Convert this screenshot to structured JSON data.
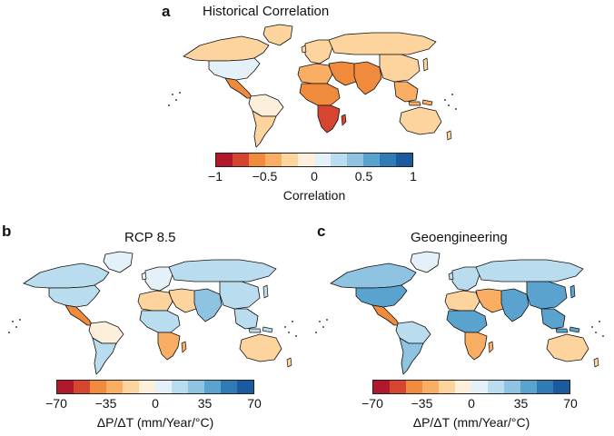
{
  "panels": {
    "a": {
      "letter": "a",
      "title": "Historical Correlation",
      "colorbar": {
        "colors": [
          "#b2182b",
          "#d6452f",
          "#f08a3c",
          "#f9ae63",
          "#fdd49e",
          "#fdf0da",
          "#e4f1f8",
          "#b9dcee",
          "#8ec3e1",
          "#5aa3cf",
          "#2f7bb6",
          "#1c5aa0"
        ],
        "ticks": [
          "−1",
          "−0.5",
          "0",
          "0.5",
          "1"
        ],
        "label": "Correlation"
      },
      "regions": {
        "north_america": "#fdd49e",
        "greenland": "#fdd49e",
        "usa": "#e4f1f8",
        "central_america": "#f08a3c",
        "south_america_north": "#fdf0da",
        "south_america_south": "#fdd49e",
        "europe": "#fdd49e",
        "russia": "#fdd49e",
        "middle_east": "#f08a3c",
        "north_africa": "#f9ae63",
        "sahel": "#f08a3c",
        "southern_africa": "#d6452f",
        "south_asia": "#f08a3c",
        "east_asia": "#fdd49e",
        "southeast_asia": "#f9ae63",
        "australia": "#fdd49e"
      }
    },
    "b": {
      "letter": "b",
      "title": "RCP 8.5",
      "colorbar": {
        "colors": [
          "#b2182b",
          "#d6452f",
          "#f08a3c",
          "#f9ae63",
          "#fdd49e",
          "#fdf0da",
          "#e4f1f8",
          "#b9dcee",
          "#8ec3e1",
          "#5aa3cf",
          "#2f7bb6",
          "#1c5aa0"
        ],
        "ticks": [
          "−70",
          "−35",
          "0",
          "35",
          "70"
        ],
        "label": "ΔP/ΔT (mm/Year/°C)"
      },
      "regions": {
        "north_america": "#b9dcee",
        "greenland": "#e4f1f8",
        "usa": "#b9dcee",
        "central_america": "#f08a3c",
        "south_america_north": "#fdf0da",
        "south_america_south": "#b9dcee",
        "europe": "#e4f1f8",
        "russia": "#b9dcee",
        "middle_east": "#fdd49e",
        "north_africa": "#fdd49e",
        "sahel": "#b9dcee",
        "southern_africa": "#f9ae63",
        "south_asia": "#8ec3e1",
        "east_asia": "#b9dcee",
        "southeast_asia": "#b9dcee",
        "australia": "#fdd49e"
      }
    },
    "c": {
      "letter": "c",
      "title": "Geoengineering",
      "colorbar": {
        "colors": [
          "#b2182b",
          "#d6452f",
          "#f08a3c",
          "#f9ae63",
          "#fdd49e",
          "#fdf0da",
          "#e4f1f8",
          "#b9dcee",
          "#8ec3e1",
          "#5aa3cf",
          "#2f7bb6",
          "#1c5aa0"
        ],
        "ticks": [
          "−70",
          "−35",
          "0",
          "35",
          "70"
        ],
        "label": "ΔP/ΔT (mm/Year/°C)"
      },
      "regions": {
        "north_america": "#8ec3e1",
        "greenland": "#e4f1f8",
        "usa": "#5aa3cf",
        "central_america": "#f08a3c",
        "south_america_north": "#b9dcee",
        "south_america_south": "#8ec3e1",
        "europe": "#b9dcee",
        "russia": "#b9dcee",
        "middle_east": "#f9ae63",
        "north_africa": "#fdd49e",
        "sahel": "#5aa3cf",
        "southern_africa": "#f9ae63",
        "south_asia": "#5aa3cf",
        "east_asia": "#5aa3cf",
        "southeast_asia": "#5aa3cf",
        "australia": "#fdd49e"
      }
    }
  }
}
